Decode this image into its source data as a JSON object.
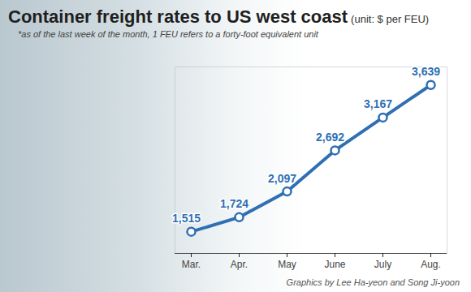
{
  "chart_data": {
    "type": "line",
    "title": "Container freight rates to US west coast",
    "y_label": "(unit: $ per FEU)",
    "subtitle": "*as of the last week of the month, 1 FEU refers to a forty-foot equivalent unit",
    "caption": "Graphics by Lee Ha-yeon and Song Ji-yoon",
    "categories": [
      "Mar.",
      "Apr.",
      "May",
      "June",
      "July",
      "Aug."
    ],
    "values": [
      1515,
      1724,
      2097,
      2692,
      3167,
      3639
    ],
    "value_labels": [
      "1,515",
      "1,724",
      "2,097",
      "2,692",
      "3,167",
      "3,639"
    ],
    "color": "#2f6fb3",
    "marker": "circle",
    "ylim": [
      1200,
      3900
    ],
    "yticks": [],
    "grid": false,
    "data_labels": true,
    "tick_labels": "x"
  }
}
